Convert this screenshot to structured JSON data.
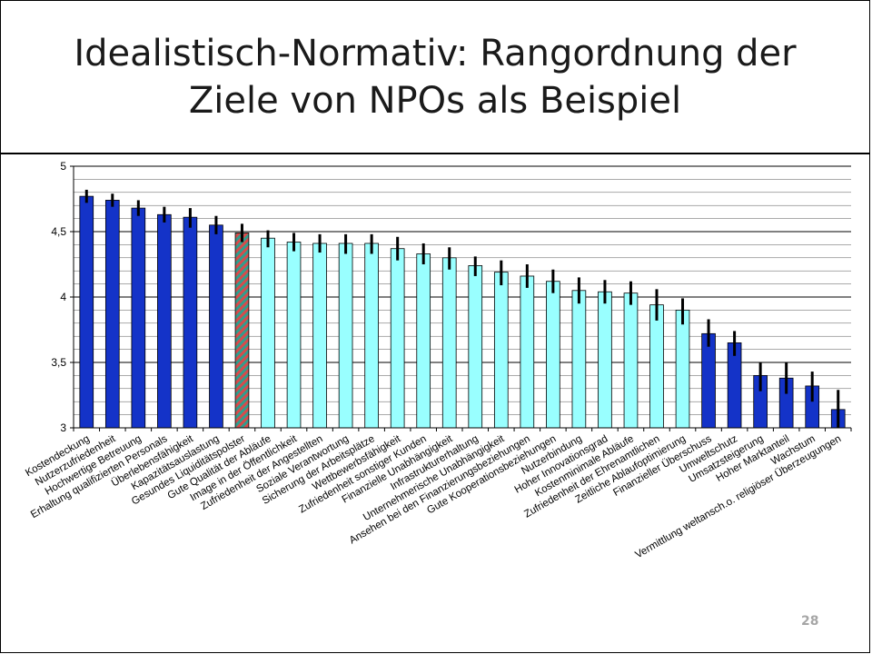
{
  "slide": {
    "title": "Idealistisch-Normativ: Rangordnung der Ziele von NPOs als Beispiel",
    "page_number": "28"
  },
  "colors": {
    "dark_bar": "#1433c8",
    "light_bar": "#99ffff",
    "hatched_bar_a": "#2e9e8e",
    "hatched_bar_b": "#d94a4a",
    "error_bar": "#000000"
  },
  "chart_data": {
    "type": "bar",
    "title": "",
    "xlabel": "",
    "ylabel": "",
    "ylim": [
      3,
      5
    ],
    "yticks": [
      3,
      3.5,
      4,
      4.5,
      5
    ],
    "ytick_labels": [
      "3",
      "3,5",
      "4",
      "4,5",
      "5"
    ],
    "grid": true,
    "categories": [
      "Kostendeckung",
      "Nutzerzufriedenheit",
      "Hochwertige Betreuung",
      "Erhaltung qualifizierten Personals",
      "Überlebensfähigkeit",
      "Kapazitätsauslastung",
      "Gesundes Liquiditätspolster",
      "Gute Qualität der Abläufe",
      "Image in der Öffentlichkeit",
      "Zufriedenheit der Angestellten",
      "Soziale Verantwortung",
      "Sicherung der Arbeitsplätze",
      "Wettbewerbsfähigkeit",
      "Zufriedenheit sonstiger Kunden",
      "Finanzielle Unabhängigkeit",
      "Infrastrukturerhaltung",
      "Unternehmerische Unabhängigkeit",
      "Ansehen bei den Finanzierungsbeziehungen",
      "Gute Kooperationsbeziehungen",
      "Nutzerbindung",
      "Hoher Innovationsgrad",
      "Kostenminimale Abläufe",
      "Zufriedenheit der Ehrenamtlichen",
      "Zeitliche Ablaufoptimierung",
      "Finanzieller Überschuss",
      "Umweltschutz",
      "Umsatzsteigerung",
      "Hoher Marktanteil",
      "Wachstum",
      "Vermittlung weltansch.o. religiöser Überzeugungen"
    ],
    "values": [
      4.77,
      4.74,
      4.68,
      4.63,
      4.61,
      4.55,
      4.49,
      4.45,
      4.42,
      4.41,
      4.41,
      4.41,
      4.37,
      4.33,
      4.3,
      4.24,
      4.19,
      4.16,
      4.12,
      4.05,
      4.04,
      4.03,
      3.94,
      3.9,
      3.72,
      3.65,
      3.4,
      3.38,
      3.32,
      3.14
    ],
    "error_low": [
      4.72,
      4.69,
      4.62,
      4.57,
      4.53,
      4.48,
      4.42,
      4.38,
      4.35,
      4.34,
      4.33,
      4.33,
      4.28,
      4.25,
      4.21,
      4.16,
      4.09,
      4.07,
      4.03,
      3.95,
      3.95,
      3.94,
      3.82,
      3.79,
      3.62,
      3.55,
      3.28,
      3.26,
      3.2,
      3.0
    ],
    "error_high": [
      4.82,
      4.79,
      4.74,
      4.69,
      4.68,
      4.62,
      4.56,
      4.51,
      4.49,
      4.48,
      4.48,
      4.48,
      4.46,
      4.41,
      4.38,
      4.31,
      4.28,
      4.25,
      4.21,
      4.15,
      4.13,
      4.12,
      4.06,
      3.99,
      3.83,
      3.74,
      3.5,
      3.5,
      3.43,
      3.29
    ],
    "bar_styles": [
      "dark",
      "dark",
      "dark",
      "dark",
      "dark",
      "dark",
      "hatched",
      "light",
      "light",
      "light",
      "light",
      "light",
      "light",
      "light",
      "light",
      "light",
      "light",
      "light",
      "light",
      "light",
      "light",
      "light",
      "light",
      "light",
      "dark",
      "dark",
      "dark",
      "dark",
      "dark",
      "dark"
    ]
  }
}
